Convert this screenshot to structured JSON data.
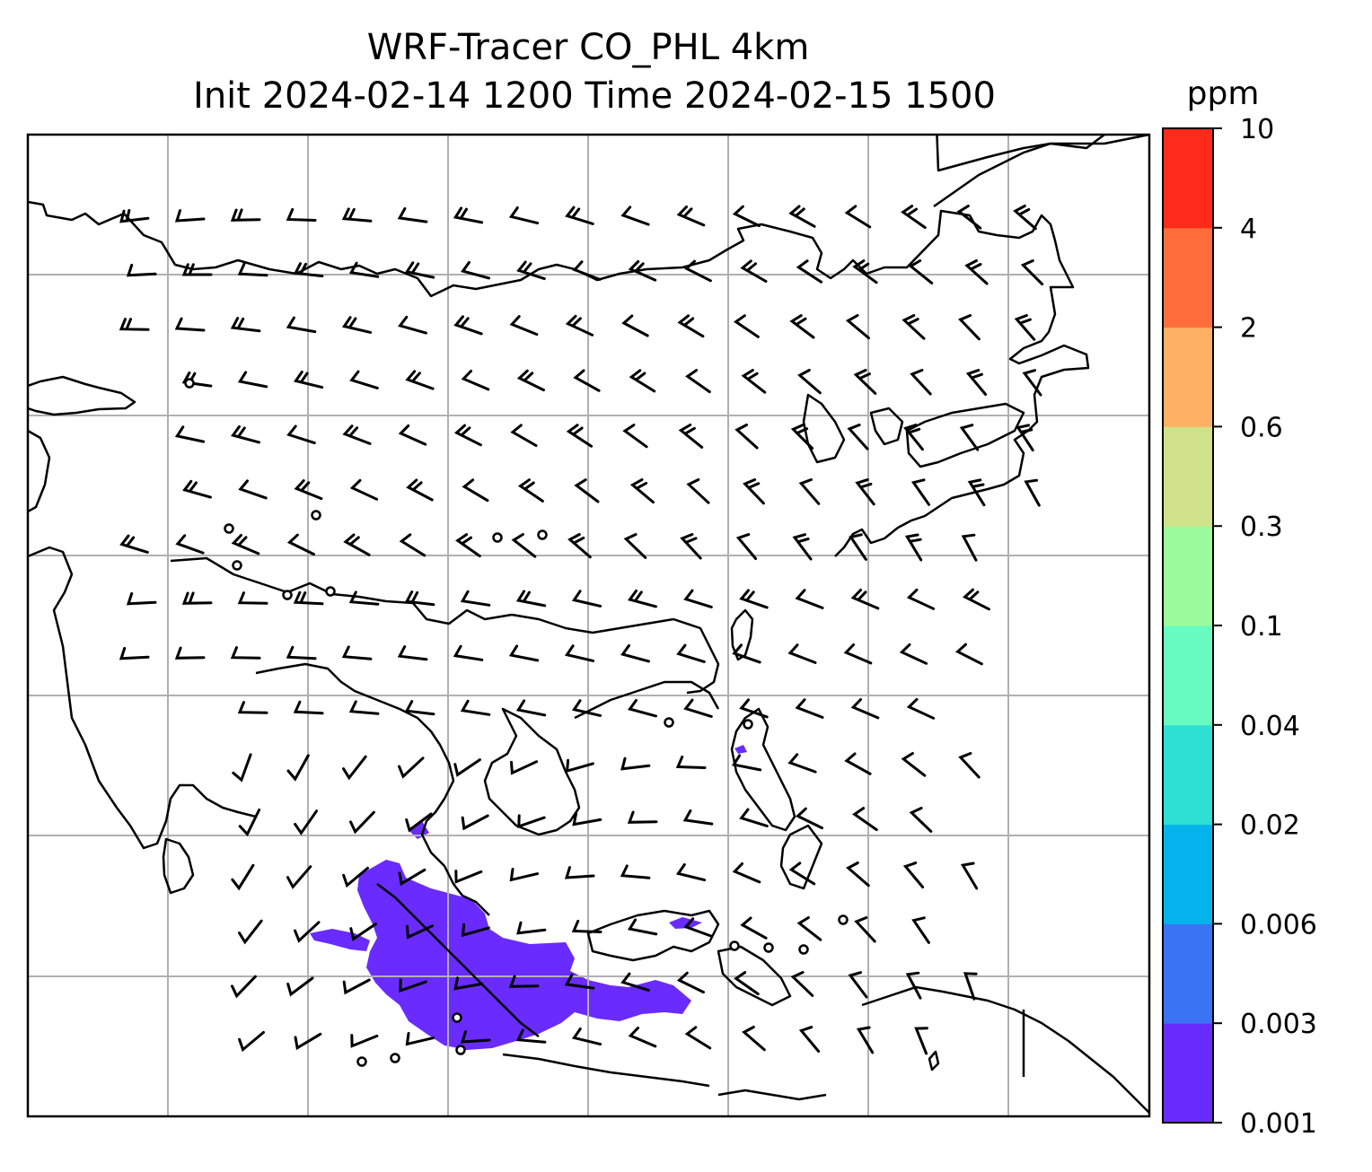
{
  "title": {
    "line1": "WRF-Tracer CO_PHL 4km",
    "line2": "Init 2024-02-14 1200 Time 2024-02-15 1500"
  },
  "colorbar": {
    "unit": "ppm",
    "tick_labels": [
      "0.001",
      "0.003",
      "0.006",
      "0.02",
      "0.04",
      "0.1",
      "0.3",
      "0.6",
      "2",
      "4",
      "10"
    ],
    "colors": [
      "#6a2bff",
      "#3a73f4",
      "#05b3ec",
      "#2ee0d3",
      "#67fbc1",
      "#9afb9c",
      "#cfe289",
      "#feb064",
      "#ff6e3a",
      "#ff2a1a"
    ]
  },
  "map": {
    "background": "#ffffff",
    "gridline_color": "#b0b0b0",
    "coastline_color": "#000000",
    "plume_color": "#6a2bff",
    "wind_barb_color": "#000000"
  }
}
